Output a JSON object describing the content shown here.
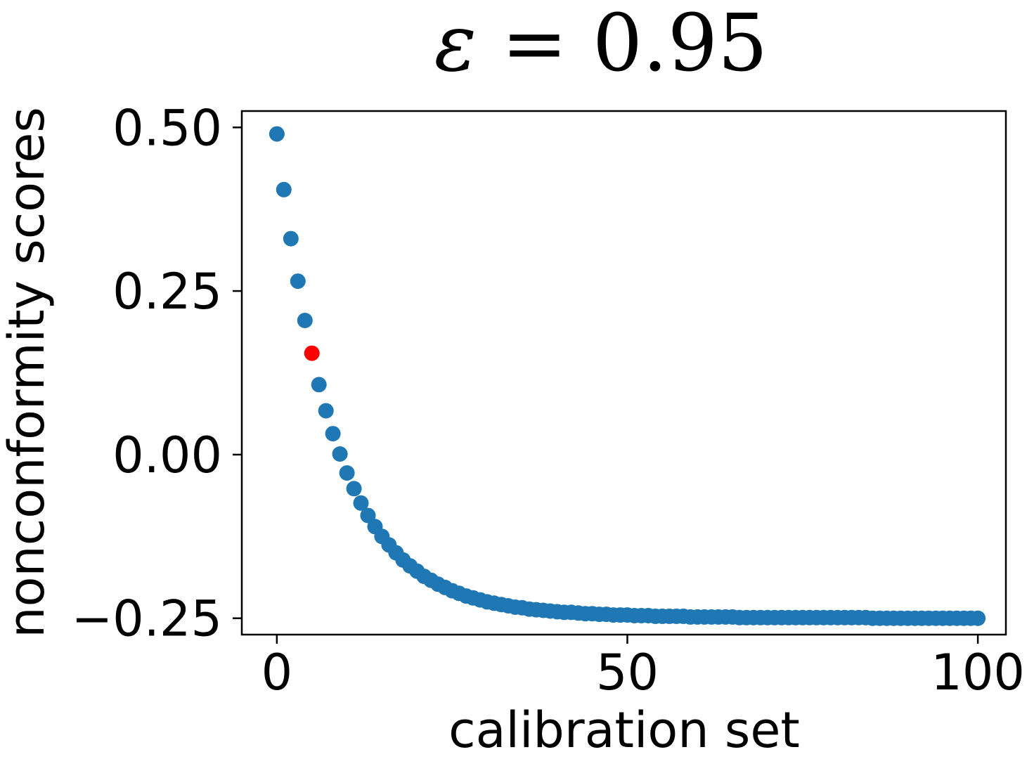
{
  "chart_data": {
    "type": "scatter",
    "title": "ε = 0.95",
    "xlabel": "calibration set",
    "ylabel": "nonconformity scores",
    "xlim": [
      -5,
      104
    ],
    "ylim": [
      -0.275,
      0.525
    ],
    "xticks": [
      0,
      50,
      100
    ],
    "xtick_labels": [
      "0",
      "50",
      "100"
    ],
    "yticks": [
      0.5,
      0.25,
      0.0,
      -0.25
    ],
    "ytick_labels": [
      "0.50",
      "0.25",
      "0.00",
      "−0.25"
    ],
    "grid": false,
    "legend": "none",
    "colors": {
      "points": "#1f77b4",
      "highlight": "#ff0000"
    },
    "highlight": {
      "x": 5,
      "y": 0.155
    },
    "model": "y = -0.25 + 0.74 * exp(-0.115 * x)",
    "x": [
      0,
      1,
      2,
      3,
      4,
      5,
      6,
      7,
      8,
      9,
      10,
      11,
      12,
      13,
      14,
      15,
      16,
      17,
      18,
      19,
      20,
      21,
      22,
      23,
      24,
      25,
      26,
      27,
      28,
      29,
      30,
      31,
      32,
      33,
      34,
      35,
      36,
      37,
      38,
      39,
      40,
      41,
      42,
      43,
      44,
      45,
      46,
      47,
      48,
      49,
      50,
      51,
      52,
      53,
      54,
      55,
      56,
      57,
      58,
      59,
      60,
      61,
      62,
      63,
      64,
      65,
      66,
      67,
      68,
      69,
      70,
      71,
      72,
      73,
      74,
      75,
      76,
      77,
      78,
      79,
      80,
      81,
      82,
      83,
      84,
      85,
      86,
      87,
      88,
      89,
      90,
      91,
      92,
      93,
      94,
      95,
      96,
      97,
      98,
      99,
      100
    ],
    "y": [
      0.49,
      0.405,
      0.33,
      0.265,
      0.205,
      0.155,
      0.107,
      0.067,
      0.032,
      0.001,
      -0.028,
      -0.052,
      -0.074,
      -0.093,
      -0.11,
      -0.125,
      -0.138,
      -0.15,
      -0.161,
      -0.17,
      -0.178,
      -0.186,
      -0.192,
      -0.198,
      -0.203,
      -0.208,
      -0.212,
      -0.216,
      -0.219,
      -0.222,
      -0.225,
      -0.227,
      -0.229,
      -0.231,
      -0.233,
      -0.234,
      -0.236,
      -0.237,
      -0.238,
      -0.239,
      -0.24,
      -0.241,
      -0.241,
      -0.242,
      -0.243,
      -0.243,
      -0.244,
      -0.244,
      -0.245,
      -0.245,
      -0.245,
      -0.246,
      -0.246,
      -0.246,
      -0.247,
      -0.247,
      -0.247,
      -0.247,
      -0.247,
      -0.248,
      -0.248,
      -0.248,
      -0.248,
      -0.248,
      -0.248,
      -0.248,
      -0.249,
      -0.249,
      -0.249,
      -0.249,
      -0.249,
      -0.249,
      -0.249,
      -0.249,
      -0.249,
      -0.249,
      -0.249,
      -0.249,
      -0.249,
      -0.249,
      -0.249,
      -0.249,
      -0.249,
      -0.249,
      -0.249,
      -0.25,
      -0.25,
      -0.25,
      -0.25,
      -0.25,
      -0.25,
      -0.25,
      -0.25,
      -0.25,
      -0.25,
      -0.25,
      -0.25,
      -0.25,
      -0.25,
      -0.25,
      -0.25
    ]
  }
}
